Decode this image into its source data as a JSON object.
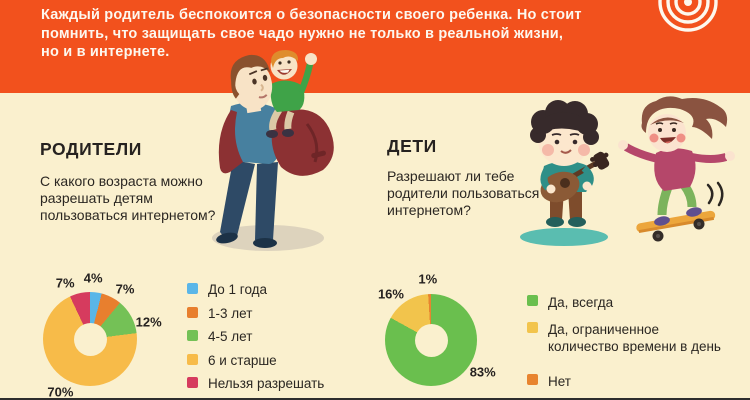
{
  "page": {
    "background": "#faf0ce",
    "text_color": "#2b2722"
  },
  "header": {
    "background": "#f2511d",
    "text_color": "#fdf8ef",
    "icon": "target-rings-icon",
    "lines": [
      "Каждый родитель беспокоится о безопасности своего ребенка. Но стоит",
      "помнить, что защищать свое чадо нужно не только в реальной жизни,",
      "но и в интернете."
    ]
  },
  "sections": {
    "parents": {
      "title": "РОДИТЕЛИ",
      "question": "С какого возраста можно разрешать детям пользоваться интернетом?"
    },
    "children": {
      "title": "ДЕТИ",
      "question": "Разрешают ли тебе родители пользоваться интернетом?"
    }
  },
  "chart_data": [
    {
      "type": "pie",
      "donut": true,
      "section": "РОДИТЕЛИ",
      "question": "С какого возраста можно разрешать детям пользоваться интернетом?",
      "categories": [
        "До 1 года",
        "1-3 лет",
        "4-5 лет",
        "6 и старше",
        "Нельзя разрешать"
      ],
      "values": [
        4,
        7,
        12,
        70,
        7
      ],
      "unit": "%",
      "colors": [
        "#5ab6e8",
        "#e87f2e",
        "#74c156",
        "#f7bb49",
        "#d63b5e"
      ],
      "legend_position": "right",
      "label_angles": [
        3,
        35,
        74,
        209,
        336
      ],
      "label_radius": 61
    },
    {
      "type": "pie",
      "donut": true,
      "section": "ДЕТИ",
      "question": "Разрешают ли тебе родители пользоваться интернетом?",
      "categories": [
        "Да, всегда",
        "Да, ограниченное количество времени в день",
        "Нет"
      ],
      "legend_lines": [
        [
          "Да, всегда"
        ],
        [
          "Да, ограниченное",
          "количество времени в день"
        ],
        [
          "Нет"
        ]
      ],
      "values": [
        83,
        16,
        1
      ],
      "unit": "%",
      "colors": [
        "#6abf4e",
        "#f2c44c",
        "#e8842f"
      ],
      "legend_position": "right",
      "label_angles": [
        122,
        319,
        357
      ],
      "label_radius": 61
    }
  ],
  "illustrations": [
    {
      "name": "father-with-child-on-shoulders"
    },
    {
      "name": "boy-playing-guitar"
    },
    {
      "name": "girl-riding-skateboard"
    },
    {
      "name": "target-rings"
    }
  ]
}
